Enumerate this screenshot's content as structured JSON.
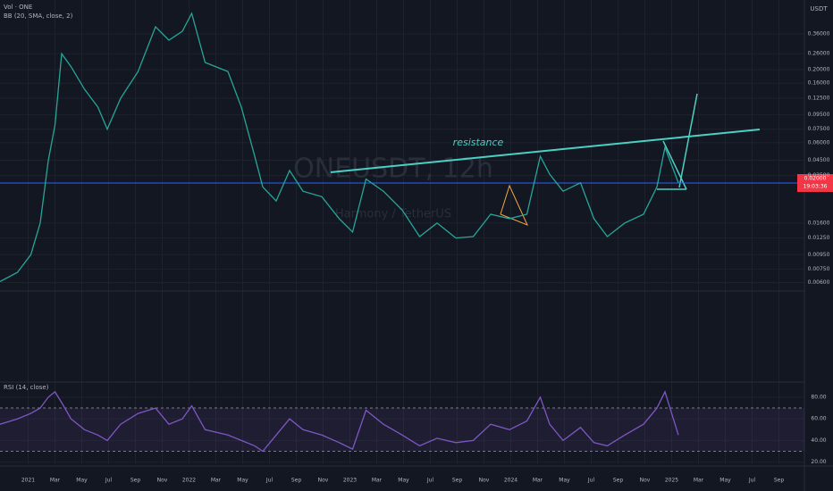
{
  "chart_data": [
    {
      "type": "line",
      "title": "ONEUSDT, 12h",
      "subtitle": "Harmony / TetherUS",
      "indicators": [
        "Vol · ONE",
        "BB (20, SMA, close, 2)"
      ],
      "currency": "USDT",
      "annotation": "resistance",
      "last_price_label": "0.02000",
      "countdown": "19:03:36",
      "log_scale": true,
      "grid": true,
      "x": [
        -2.1,
        -0.8,
        0.2,
        0.9,
        1.5,
        2,
        2.5,
        3.2,
        4.2,
        5.2,
        5.9,
        6.9,
        8.2,
        9.5,
        10.5,
        11.5,
        12.2,
        13.2,
        14.9,
        15.9,
        16.9,
        17.5,
        18.5,
        19.5,
        20.5,
        21.9,
        23.2,
        24.2,
        25.2,
        26.5,
        27.9,
        29.2,
        30.5,
        31.9,
        33.2,
        34.5,
        35.9,
        37.2,
        38.2,
        38.9,
        39.9,
        41.2,
        42.2,
        43.2,
        44.5,
        45.9,
        46.9,
        47.5,
        48.5
      ],
      "series": [
        {
          "color": "#26a69a",
          "values": [
            0.0061,
            0.0071,
            0.0095,
            0.016,
            0.0446,
            0.08,
            0.26,
            0.21,
            0.145,
            0.108,
            0.075,
            0.125,
            0.194,
            0.405,
            0.325,
            0.376,
            0.505,
            0.225,
            0.194,
            0.108,
            0.048,
            0.029,
            0.023,
            0.038,
            0.027,
            0.0247,
            0.0172,
            0.0138,
            0.033,
            0.027,
            0.0198,
            0.0128,
            0.016,
            0.0125,
            0.0128,
            0.0185,
            0.0172,
            0.0185,
            0.048,
            0.0357,
            0.027,
            0.031,
            0.0172,
            0.0128,
            0.016,
            0.0185,
            0.029,
            0.0556,
            0.031
          ]
        }
      ],
      "xlim": [
        -2.1,
        57.9
      ],
      "xticks": [
        {
          "value": 0,
          "label": "2021"
        },
        {
          "value": 2,
          "label": "Mar"
        },
        {
          "value": 4,
          "label": "May"
        },
        {
          "value": 6,
          "label": "Jul"
        },
        {
          "value": 8,
          "label": "Sep"
        },
        {
          "value": 10,
          "label": "Nov"
        },
        {
          "value": 12,
          "label": "2022"
        },
        {
          "value": 14,
          "label": "Mar"
        },
        {
          "value": 16,
          "label": "May"
        },
        {
          "value": 18,
          "label": "Jul"
        },
        {
          "value": 20,
          "label": "Sep"
        },
        {
          "value": 22,
          "label": "Nov"
        },
        {
          "value": 24,
          "label": "2023"
        },
        {
          "value": 26,
          "label": "Mar"
        },
        {
          "value": 28,
          "label": "May"
        },
        {
          "value": 30,
          "label": "Jul"
        },
        {
          "value": 32,
          "label": "Sep"
        },
        {
          "value": 34,
          "label": "Nov"
        },
        {
          "value": 36,
          "label": "2024"
        },
        {
          "value": 38,
          "label": "Mar"
        },
        {
          "value": 40,
          "label": "May"
        },
        {
          "value": 42,
          "label": "Jul"
        },
        {
          "value": 44,
          "label": "Sep"
        },
        {
          "value": 46,
          "label": "Nov"
        },
        {
          "value": 48,
          "label": "2025"
        },
        {
          "value": 50,
          "label": "Mar"
        },
        {
          "value": 52,
          "label": "May"
        },
        {
          "value": 54,
          "label": "Jul"
        },
        {
          "value": 56,
          "label": "Sep"
        }
      ],
      "ylim": [
        0.0053,
        0.585
      ],
      "yticks": [
        {
          "value": 0.36,
          "label": "0.36000"
        },
        {
          "value": 0.26,
          "label": "0.26000"
        },
        {
          "value": 0.2,
          "label": "0.20000"
        },
        {
          "value": 0.16,
          "label": "0.16000"
        },
        {
          "value": 0.125,
          "label": "0.12500"
        },
        {
          "value": 0.095,
          "label": "0.09500"
        },
        {
          "value": 0.075,
          "label": "0.07500"
        },
        {
          "value": 0.06,
          "label": "0.06000"
        },
        {
          "value": 0.045,
          "label": "0.04500"
        },
        {
          "value": 0.035,
          "label": "0.03500"
        },
        {
          "value": 0.016,
          "label": "0.01600"
        },
        {
          "value": 0.0125,
          "label": "0.01250"
        },
        {
          "value": 0.0095,
          "label": "0.00950"
        },
        {
          "value": 0.0075,
          "label": "0.00750"
        },
        {
          "value": 0.006,
          "label": "0.00600"
        }
      ]
    },
    {
      "type": "line",
      "title": "RSI (14, close)",
      "x": [
        -2.1,
        -0.8,
        0.2,
        0.9,
        1.5,
        2,
        2.5,
        3.2,
        4.2,
        5.2,
        5.9,
        6.9,
        8.2,
        9.5,
        10.5,
        11.5,
        12.2,
        13.2,
        14.9,
        15.9,
        16.9,
        17.5,
        18.5,
        19.5,
        20.5,
        21.9,
        23.2,
        24.2,
        25.2,
        26.5,
        27.9,
        29.2,
        30.5,
        31.9,
        33.2,
        34.5,
        35.9,
        37.2,
        38.2,
        38.9,
        39.9,
        41.2,
        42.2,
        43.2,
        44.5,
        45.9,
        46.9,
        47.5,
        48.5
      ],
      "series": [
        {
          "color": "#7e57c2",
          "values": [
            55,
            60,
            65,
            70,
            80,
            85,
            75,
            60,
            50,
            45,
            40,
            55,
            65,
            70,
            55,
            60,
            72,
            50,
            45,
            40,
            35,
            30,
            45,
            60,
            50,
            45,
            38,
            32,
            68,
            55,
            45,
            35,
            42,
            38,
            40,
            55,
            50,
            58,
            80,
            55,
            40,
            52,
            38,
            35,
            45,
            55,
            70,
            85,
            45
          ]
        }
      ],
      "band": [
        30,
        70
      ],
      "xlim": [
        -2.1,
        57.9
      ],
      "ylim": [
        18,
        94
      ],
      "yticks": [
        {
          "value": 80,
          "label": "80.00"
        },
        {
          "value": 60,
          "label": "60.00"
        },
        {
          "value": 40,
          "label": "40.00"
        },
        {
          "value": 20,
          "label": "20.00"
        }
      ]
    }
  ]
}
